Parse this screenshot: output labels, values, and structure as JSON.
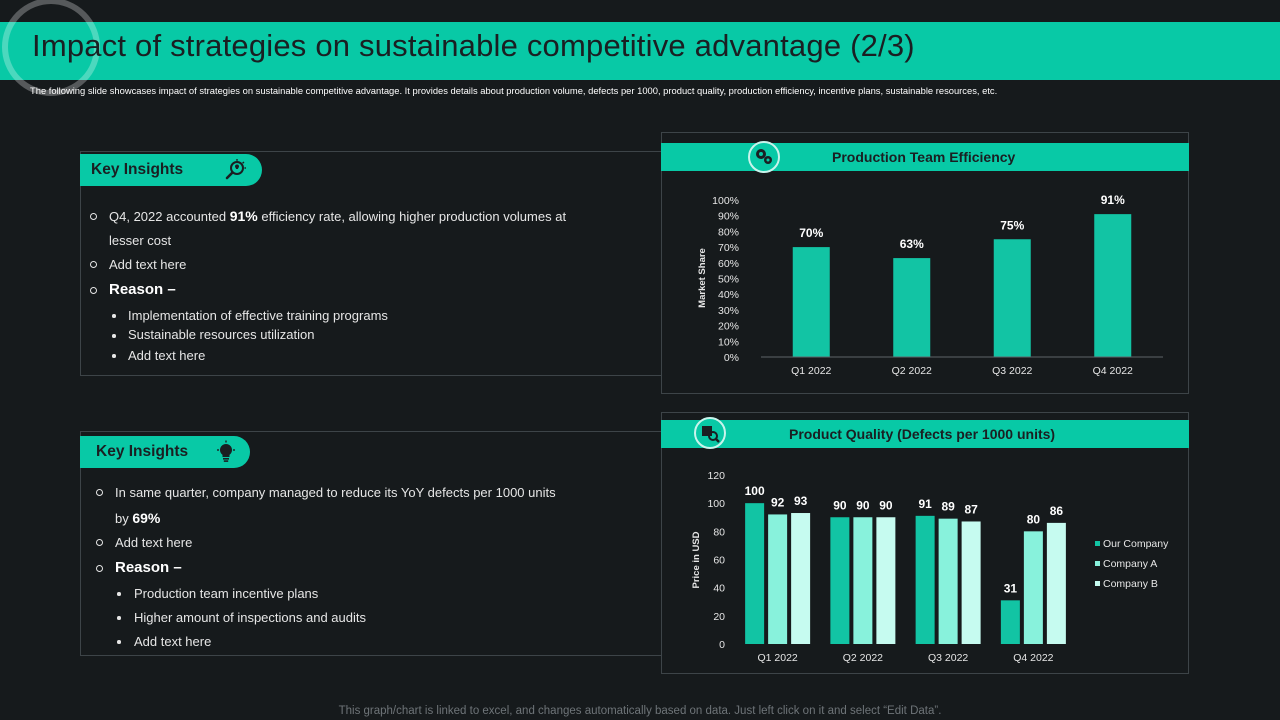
{
  "header": {
    "title": "Impact of strategies on sustainable competitive advantage (2/3)",
    "subtitle": "The following slide showcases impact of strategies on sustainable competitive advantage. It provides details about production volume, defects per 1000, product quality, production efficiency, incentive plans, sustainable resources, etc."
  },
  "insights1": {
    "badge": "Key Insights",
    "point1_pre": "Q4, 2022 accounted ",
    "point1_bold": "91%",
    "point1_post": " efficiency rate, allowing higher production volumes at",
    "point1_line2": "lesser cost",
    "point2": "Add text here",
    "reason": "Reason –",
    "reasons": [
      "Implementation of effective training programs",
      "Sustainable resources utilization",
      "Add text here"
    ]
  },
  "insights2": {
    "badge": "Key Insights",
    "point1": "In same quarter, company managed to reduce its YoY defects per 1000 units",
    "point1_line2_pre": "by ",
    "point1_line2_bold": "69%",
    "point2": "Add text here",
    "reason": "Reason –",
    "reasons": [
      "Production team incentive plans",
      "Higher amount of inspections and audits",
      "Add text here"
    ]
  },
  "footer": "This graph/chart is linked to excel,  and changes automatically based on data. Just left click on it and select “Edit Data”.",
  "colors": {
    "accent": "#08c9a6",
    "background": "#161a1c",
    "series_our": "#12c4a4",
    "series_a": "#88f2dc",
    "series_b": "#c6fbf0"
  },
  "chart_data": [
    {
      "type": "bar",
      "title": "Production Team Efficiency",
      "categories": [
        "Q1 2022",
        "Q2 2022",
        "Q3 2022",
        "Q4 2022"
      ],
      "values": [
        70,
        63,
        75,
        91
      ],
      "value_labels": [
        "70%",
        "63%",
        "75%",
        "91%"
      ],
      "xlabel": "",
      "ylabel": "Market Share",
      "ylim": [
        0,
        100
      ],
      "yticks": [
        "0%",
        "10%",
        "20%",
        "30%",
        "40%",
        "50%",
        "60%",
        "70%",
        "80%",
        "90%",
        "100%"
      ],
      "grid": false
    },
    {
      "type": "bar",
      "title": "Product Quality (Defects per 1000 units)",
      "categories": [
        "Q1 2022",
        "Q2 2022",
        "Q3 2022",
        "Q4 2022"
      ],
      "series": [
        {
          "name": "Our Company",
          "values": [
            100,
            90,
            91,
            31
          ]
        },
        {
          "name": "Company A",
          "values": [
            92,
            90,
            89,
            80
          ]
        },
        {
          "name": "Company B",
          "values": [
            93,
            90,
            87,
            86
          ]
        }
      ],
      "xlabel": "",
      "ylabel": "Price in USD",
      "ylim": [
        0,
        120
      ],
      "yticks": [
        "0",
        "20",
        "40",
        "60",
        "80",
        "100",
        "120"
      ],
      "legend": "right",
      "grid": false
    }
  ]
}
